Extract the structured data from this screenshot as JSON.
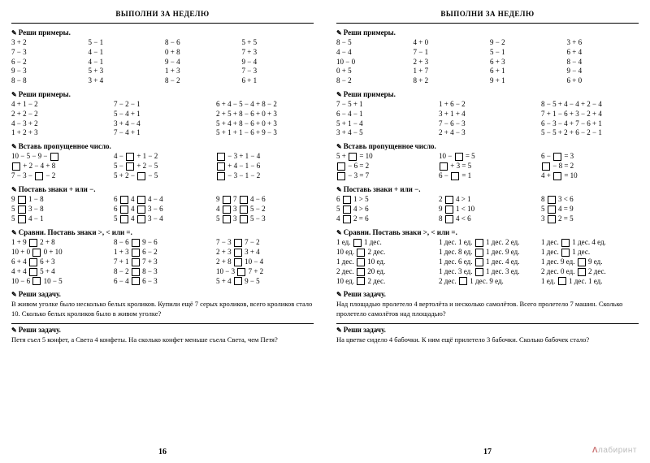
{
  "left": {
    "title": "ВЫПОЛНИ ЗА НЕДЕЛЮ",
    "s1_h": "Реши примеры.",
    "s1": [
      [
        "3 + 2",
        "5 − 1",
        "8 − 6",
        "5 + 5"
      ],
      [
        "7 − 3",
        "4 − 1",
        "0 + 8",
        "7 + 3"
      ],
      [
        "6 − 2",
        "4 − 1",
        "9 − 4",
        "9 − 4"
      ],
      [
        "9 − 3",
        "5 + 3",
        "1 + 3",
        "7 − 3"
      ],
      [
        "8 − 8",
        "3 + 4",
        "8 − 2",
        "6 + 1"
      ]
    ],
    "s2_h": "Реши примеры.",
    "s2": [
      [
        "4 + 1 − 2",
        "7 − 2 − 1",
        "6 + 4 − 5 − 4 + 8 − 2"
      ],
      [
        "2 + 2 − 2",
        "5 − 4 + 1",
        "2 + 5 + 8 − 6 + 0 + 3"
      ],
      [
        "4 − 3 + 2",
        "3 + 4 − 4",
        "5 + 4 + 8 − 6 + 0 + 3"
      ],
      [
        "1 + 2 + 3",
        "7 − 4 + 1",
        "5 + 1 + 1 − 6 + 9 − 3"
      ]
    ],
    "s3_h": "Вставь пропущенное число.",
    "s3": [
      [
        "10 − 5 − 9 − □",
        "4 − □ + 1 − 2",
        "□ − 3 + 1 − 4"
      ],
      [
        "□ + 2 − 4 + 8",
        "5 − □ + 2 − 5",
        "□ + 4 − 1 − 6"
      ],
      [
        "7 − 3 − □ − 2",
        "5 + 2 − □ − 5",
        "□ − 3 − 1 − 2"
      ]
    ],
    "s4_h": "Поставь знаки + или −.",
    "s4": [
      [
        "9 □ 1 − 8",
        "6 □ 4 □ 4 − 4",
        "9 □ 7 □ 4 − 6"
      ],
      [
        "5 □ 3 − 8",
        "6 □ 4 □ 3 − 6",
        "4 □ 3 □ 5 − 2"
      ],
      [
        "5 □ 4 − 1",
        "5 □ 4 □ 3 − 4",
        "5 □ 3 □ 5 − 3"
      ]
    ],
    "s5_h": "Сравни. Поставь знаки >, < или =.",
    "s5": [
      [
        "1 + 9 □ 2 + 8",
        "8 − 6 □ 9 − 6",
        "7 − 3 □ 7 − 2"
      ],
      [
        "10 + 0 □ 0 + 10",
        "1 + 3 □ 6 − 2",
        "2 + 3 □ 3 + 4"
      ],
      [
        "6 + 4 □ 6 + 3",
        "7 + 1 □ 7 + 3",
        "2 + 8 □ 10 − 4"
      ],
      [
        "4 + 4 □ 5 + 4",
        "8 − 2 □ 8 − 3",
        "10 − 3 □ 7 + 2"
      ],
      [
        "10 − 6 □ 10 − 5",
        "6 − 4 □ 6 − 3",
        "5 + 4 □ 9 − 5"
      ]
    ],
    "s6_h": "Реши задачу.",
    "s6_t": "В живом уголке было несколько белых кроликов. Купили ещё 7 серых кроликов, всего кроликов стало 10. Сколько белых кроликов было в живом уголке?",
    "s7_h": "Реши задачу.",
    "s7_t": "Петя съел 5 конфет, а Света 4 конфеты. На сколько конфет меньше съела Света, чем Петя?",
    "pnum": "16"
  },
  "right": {
    "title": "ВЫПОЛНИ ЗА НЕДЕЛЮ",
    "s1_h": "Реши примеры.",
    "s1": [
      [
        "8 − 5",
        "4 + 0",
        "9 − 2",
        "3 + 6"
      ],
      [
        "4 − 4",
        "7 − 1",
        "5 − 1",
        "6 + 4"
      ],
      [
        "10 − 0",
        "2 + 3",
        "6 + 3",
        "8 − 4"
      ],
      [
        "0 + 5",
        "1 + 7",
        "6 + 1",
        "9 − 4"
      ],
      [
        "8 − 2",
        "8 + 2",
        "9 + 1",
        "6 + 0"
      ]
    ],
    "s2_h": "Реши примеры.",
    "s2": [
      [
        "7 − 5 + 1",
        "1 + 6 − 2",
        "8 − 5 + 4 − 4 + 2 − 4"
      ],
      [
        "6 − 4 − 1",
        "3 + 1 + 4",
        "7 + 1 − 6 + 3 − 2 + 4"
      ],
      [
        "5 + 1 − 4",
        "7 − 6 − 3",
        "6 − 3 − 4 + 7 − 6 + 1"
      ],
      [
        "3 + 4 − 5",
        "2 + 4 − 3",
        "5 − 5 + 2 + 6 − 2 − 1"
      ]
    ],
    "s3_h": "Вставь пропущенное число.",
    "s3": [
      [
        "5 + □ = 10",
        "10 − □ = 5",
        "6 − □ = 3"
      ],
      [
        "□ − 6 = 2",
        "□ + 3 = 5",
        "□ − 8 = 2"
      ],
      [
        "□ − 3 = 7",
        "6 − □ = 1",
        "4 + □ = 10"
      ]
    ],
    "s4_h": "Поставь знаки + или −.",
    "s4": [
      [
        "6 □ 1 > 5",
        "2 □ 4 > 1",
        "8 □ 3 < 6"
      ],
      [
        "5 □ 4 > 6",
        "9 □ 1 < 10",
        "5 □ 4 = 9"
      ],
      [
        "4 □ 2 = 6",
        "8 □ 4 < 6",
        "3 □ 2 = 5"
      ]
    ],
    "s5_h": "Сравни. Поставь знаки >, < или =.",
    "s5": [
      [
        "1 ед. □ 1 дес.",
        "1 дес. 1 ед. □ 1 дес. 2 ед.",
        "1 дес. □ 1 дес. 4 ед."
      ],
      [
        "10 ед. □ 2 дес.",
        "1 дес. 8 ед. □ 1 дес. 9 ед.",
        "1 дес. □ 1 дес."
      ],
      [
        "1 дес. □ 10 ед.",
        "1 дес. 6 ед. □ 1 дес. 4 ед.",
        "1 дес. 9 ед. □ 9 ед."
      ],
      [
        "2 дес. □ 20 ед.",
        "1 дес. 3 ед. □ 1 дес. 3 ед.",
        "2 дес. 0 ед. □ 2 дес."
      ],
      [
        "10 ед. □ 2 дес.",
        "2 дес. □ 1 дес. 9 ед.",
        "1 ед. □ 1 дес. 1 ед."
      ]
    ],
    "s6_h": "Реши задачу.",
    "s6_t": "Над площадью пролетело 4 вертолёта и несколько самолётов. Всего пролетело 7 машин. Сколько пролетело самолётов над площадью?",
    "s7_h": "Реши задачу.",
    "s7_t": "На цветке сидело 4 бабочки. К ним ещё прилетело 3 бабочки. Сколько бабочек стало?",
    "pnum": "17"
  },
  "watermark": "лабиринт"
}
